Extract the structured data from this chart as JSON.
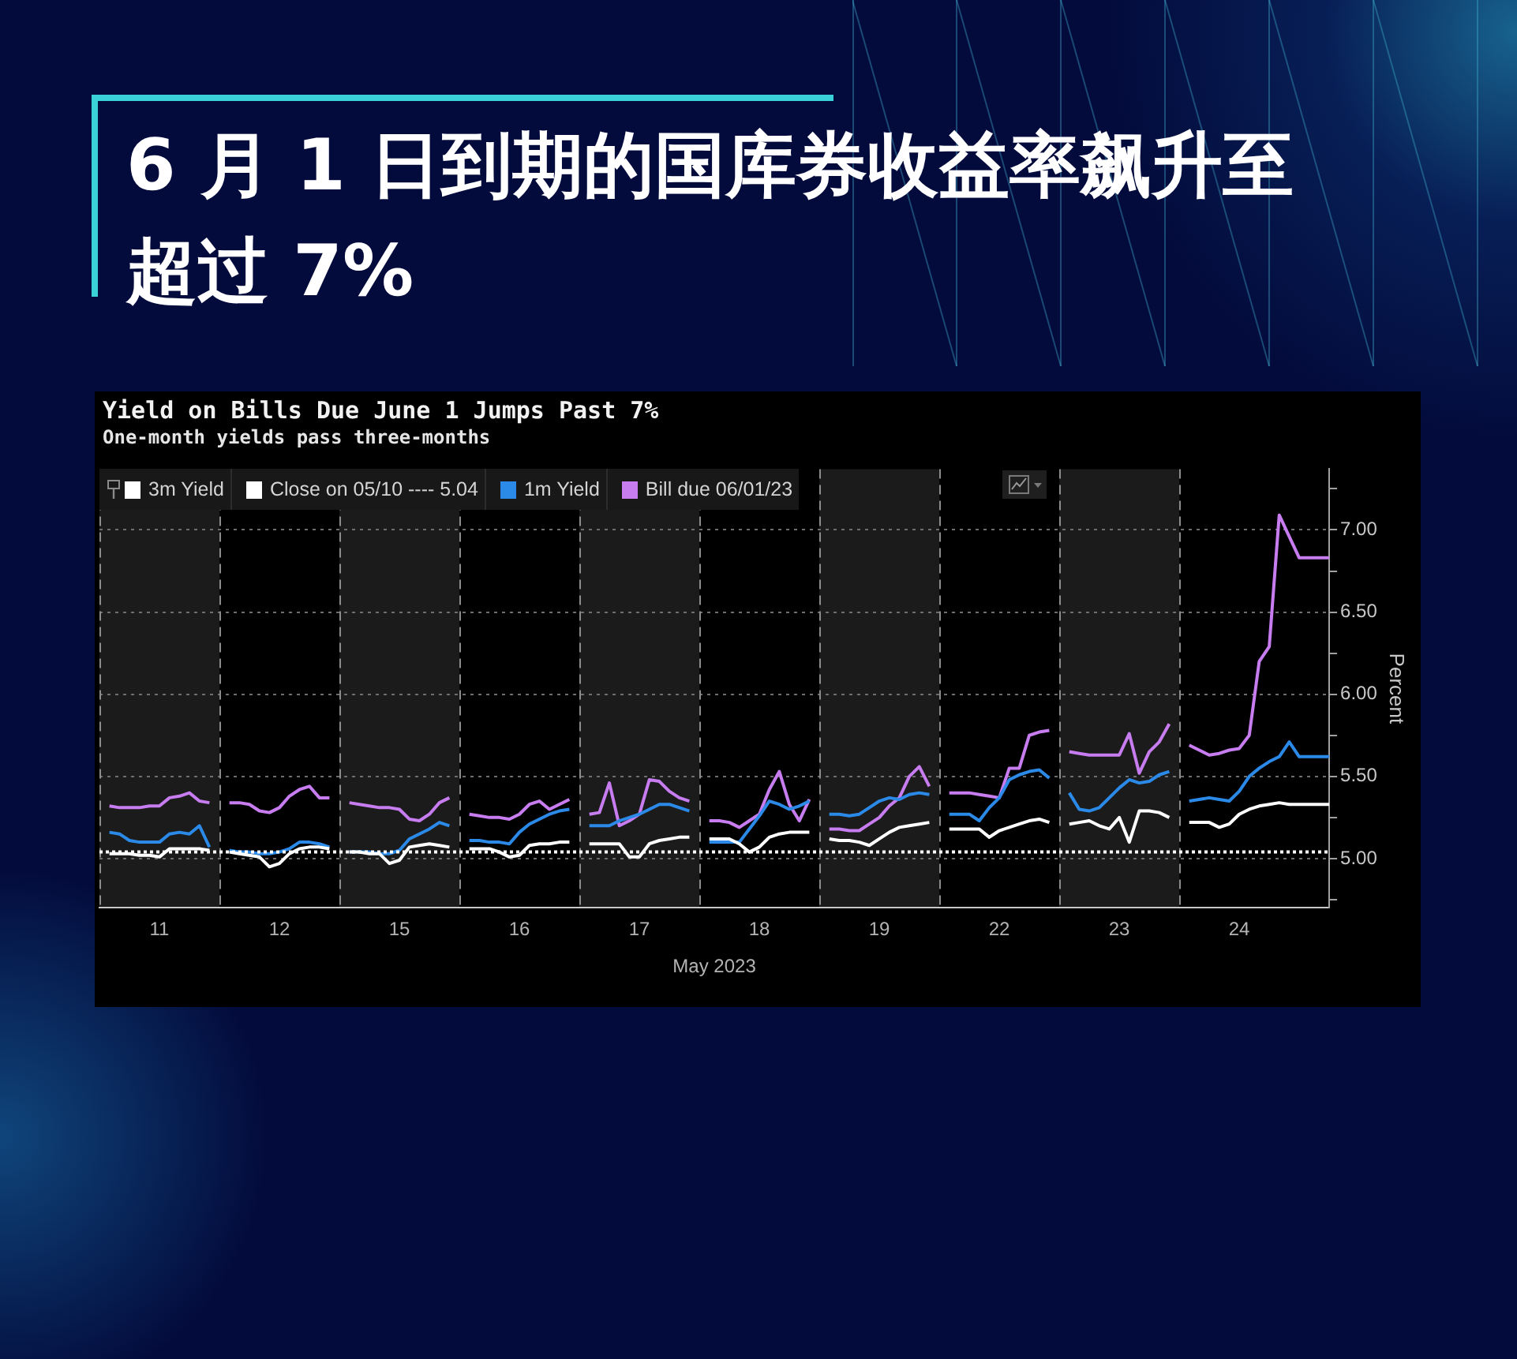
{
  "chart_data": {
    "type": "line",
    "title": "Yield on Bills Due June 1 Jumps Past 7%",
    "subtitle": "One-month yields pass three-months",
    "annotations": [
      "6 月 1 日到期的国库券收益率飙升至超过 7%"
    ],
    "xlabel": "May 2023",
    "ylabel": "Percent",
    "categories": [
      null,
      null,
      null,
      null,
      null,
      null,
      "11",
      null,
      null,
      null,
      null,
      null,
      null,
      null,
      null,
      null,
      null,
      null,
      "12",
      null,
      null,
      null,
      null,
      null,
      null,
      null,
      null,
      null,
      null,
      null,
      "15",
      null,
      null,
      null,
      null,
      null,
      null,
      null,
      null,
      null,
      null,
      null,
      "16",
      null,
      null,
      null,
      null,
      null,
      null,
      null,
      null,
      null,
      null,
      null,
      "17",
      null,
      null,
      null,
      null,
      null,
      null,
      null,
      null,
      null,
      null,
      null,
      "18",
      null,
      null,
      null,
      null,
      null,
      null,
      null,
      null,
      null,
      null,
      null,
      "19",
      null,
      null,
      null,
      null,
      null,
      null,
      null,
      null,
      null,
      null,
      null,
      "22",
      null,
      null,
      null,
      null,
      null,
      null,
      null,
      null,
      null,
      null,
      null,
      "23",
      null,
      null,
      null,
      null,
      null,
      null,
      null,
      null,
      null,
      null,
      null,
      "24",
      null,
      null,
      null,
      null,
      null,
      null,
      null,
      null,
      null
    ],
    "ylim": [
      4.7,
      7.37
    ],
    "yticks": [
      {
        "value": 4.75,
        "label": null
      },
      {
        "value": 5,
        "label": "5.00"
      },
      {
        "value": 5.25,
        "label": null
      },
      {
        "value": 5.5,
        "label": "5.50"
      },
      {
        "value": 5.75,
        "label": null
      },
      {
        "value": 6,
        "label": "6.00"
      },
      {
        "value": 6.25,
        "label": null
      },
      {
        "value": 6.5,
        "label": "6.50"
      },
      {
        "value": 6.75,
        "label": null
      },
      {
        "value": 7,
        "label": "7.00"
      },
      {
        "value": 7.25,
        "label": null
      }
    ],
    "grid": true,
    "legend": "top left",
    "marker": "none",
    "series": [
      {
        "name": "3m Yield",
        "color": "#ffffff",
        "values": [
          null,
          5.03,
          5.03,
          5.03,
          5.02,
          5.02,
          5.01,
          5.06,
          5.06,
          5.06,
          5.06,
          5.05,
          null,
          5.04,
          5.03,
          5.02,
          5.01,
          4.95,
          4.97,
          5.03,
          5.06,
          5.07,
          5.07,
          5.06,
          null,
          5.04,
          5.04,
          5.03,
          5.03,
          4.97,
          4.99,
          5.07,
          5.08,
          5.09,
          5.08,
          5.07,
          null,
          5.06,
          5.06,
          5.06,
          5.04,
          5.01,
          5.02,
          5.08,
          5.09,
          5.09,
          5.1,
          5.1,
          null,
          5.09,
          5.09,
          5.09,
          5.09,
          5.01,
          5.01,
          5.09,
          5.11,
          5.12,
          5.13,
          5.13,
          null,
          5.12,
          5.12,
          5.12,
          5.09,
          5.04,
          5.07,
          5.13,
          5.15,
          5.16,
          5.16,
          5.16,
          null,
          5.12,
          5.11,
          5.11,
          5.1,
          5.08,
          5.12,
          5.16,
          5.19,
          5.2,
          5.21,
          5.22,
          null,
          5.18,
          5.18,
          5.18,
          5.18,
          5.13,
          5.17,
          5.19,
          5.21,
          5.23,
          5.24,
          5.22,
          null,
          5.21,
          5.22,
          5.23,
          5.2,
          5.18,
          5.25,
          5.1,
          5.29,
          5.29,
          5.28,
          5.25,
          null,
          5.22,
          5.22,
          5.22,
          5.19,
          5.21,
          5.27,
          5.3,
          5.32,
          5.33,
          5.34,
          5.33,
          5.33,
          5.33,
          5.33,
          5.33
        ]
      },
      {
        "name": "Close on 05/10 ---- 5.04",
        "color": "#ffffff",
        "line_style": "dotted",
        "values": [
          5.04,
          5.04,
          5.04,
          5.04,
          5.04,
          5.04,
          5.04,
          5.04,
          5.04,
          5.04,
          5.04,
          5.04,
          5.04,
          5.04,
          5.04,
          5.04,
          5.04,
          5.04,
          5.04,
          5.04,
          5.04,
          5.04,
          5.04,
          5.04,
          5.04,
          5.04,
          5.04,
          5.04,
          5.04,
          5.04,
          5.04,
          5.04,
          5.04,
          5.04,
          5.04,
          5.04,
          5.04,
          5.04,
          5.04,
          5.04,
          5.04,
          5.04,
          5.04,
          5.04,
          5.04,
          5.04,
          5.04,
          5.04,
          5.04,
          5.04,
          5.04,
          5.04,
          5.04,
          5.04,
          5.04,
          5.04,
          5.04,
          5.04,
          5.04,
          5.04,
          5.04,
          5.04,
          5.04,
          5.04,
          5.04,
          5.04,
          5.04,
          5.04,
          5.04,
          5.04,
          5.04,
          5.04,
          5.04,
          5.04,
          5.04,
          5.04,
          5.04,
          5.04,
          5.04,
          5.04,
          5.04,
          5.04,
          5.04,
          5.04,
          5.04,
          5.04,
          5.04,
          5.04,
          5.04,
          5.04,
          5.04,
          5.04,
          5.04,
          5.04,
          5.04,
          5.04,
          5.04,
          5.04,
          5.04,
          5.04,
          5.04,
          5.04,
          5.04,
          5.04,
          5.04,
          5.04,
          5.04,
          5.04,
          5.04,
          5.04,
          5.04,
          5.04,
          5.04,
          5.04,
          5.04,
          5.04,
          5.04,
          5.04,
          5.04,
          5.04,
          5.04,
          5.04,
          5.04,
          5.04
        ]
      },
      {
        "name": "1m Yield",
        "color": "#2b8ae8",
        "values": [
          null,
          5.16,
          5.15,
          5.11,
          5.1,
          5.1,
          5.1,
          5.15,
          5.16,
          5.15,
          5.2,
          5.07,
          null,
          5.05,
          5.04,
          5.04,
          5.03,
          5.03,
          5.04,
          5.06,
          5.1,
          5.1,
          5.09,
          5.07,
          null,
          5.04,
          5.04,
          5.04,
          5.03,
          5.03,
          5.05,
          5.12,
          5.15,
          5.18,
          5.22,
          5.2,
          null,
          5.11,
          5.11,
          5.1,
          5.1,
          5.09,
          5.16,
          5.21,
          5.24,
          5.27,
          5.29,
          5.3,
          null,
          5.2,
          5.2,
          5.2,
          5.23,
          5.25,
          5.27,
          5.3,
          5.33,
          5.33,
          5.31,
          5.29,
          null,
          5.1,
          5.1,
          5.1,
          5.1,
          5.18,
          5.26,
          5.35,
          5.33,
          5.3,
          5.32,
          5.35,
          null,
          5.27,
          5.27,
          5.26,
          5.27,
          5.31,
          5.35,
          5.37,
          5.36,
          5.39,
          5.4,
          5.39,
          null,
          5.27,
          5.27,
          5.27,
          5.23,
          5.31,
          5.37,
          5.48,
          5.51,
          5.53,
          5.54,
          5.49,
          null,
          5.4,
          5.3,
          5.29,
          5.31,
          5.37,
          5.43,
          5.48,
          5.46,
          5.47,
          5.51,
          5.53,
          null,
          5.35,
          5.36,
          5.37,
          5.36,
          5.35,
          5.41,
          5.5,
          5.55,
          5.59,
          5.62,
          5.71,
          5.62,
          5.62,
          5.62,
          5.62
        ]
      },
      {
        "name": "Bill due 06/01/23",
        "color": "#c77cf0",
        "values": [
          null,
          5.32,
          5.31,
          5.31,
          5.31,
          5.32,
          5.32,
          5.37,
          5.38,
          5.4,
          5.35,
          5.34,
          null,
          5.34,
          5.34,
          5.33,
          5.29,
          5.28,
          5.31,
          5.38,
          5.42,
          5.44,
          5.37,
          5.37,
          null,
          5.34,
          5.33,
          5.32,
          5.31,
          5.31,
          5.3,
          5.24,
          5.23,
          5.27,
          5.34,
          5.37,
          null,
          5.27,
          5.26,
          5.25,
          5.25,
          5.24,
          5.27,
          5.33,
          5.35,
          5.3,
          5.33,
          5.36,
          null,
          5.27,
          5.28,
          5.46,
          5.2,
          5.23,
          5.27,
          5.48,
          5.47,
          5.41,
          5.37,
          5.35,
          null,
          5.23,
          5.23,
          5.22,
          5.19,
          5.23,
          5.27,
          5.42,
          5.53,
          5.33,
          5.23,
          5.36,
          null,
          5.18,
          5.18,
          5.17,
          5.17,
          5.21,
          5.25,
          5.32,
          5.37,
          5.5,
          5.56,
          5.44,
          null,
          5.4,
          5.4,
          5.4,
          5.39,
          5.38,
          5.37,
          5.55,
          5.55,
          5.75,
          5.77,
          5.78,
          null,
          5.65,
          5.64,
          5.63,
          5.63,
          5.63,
          5.63,
          5.76,
          5.52,
          5.65,
          5.71,
          5.82,
          null,
          5.69,
          5.66,
          5.63,
          5.64,
          5.66,
          5.67,
          5.75,
          6.2,
          6.29,
          7.09,
          6.96,
          6.83,
          6.83,
          6.83,
          6.83
        ]
      }
    ]
  }
}
